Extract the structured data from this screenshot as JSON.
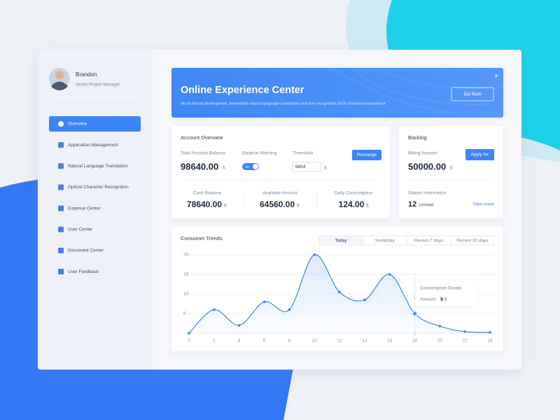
{
  "profile": {
    "name": "Brandon",
    "role": "Senior Project Manager"
  },
  "menu": [
    "Overview",
    "Application Management",
    "Natural Language Translation",
    "Optical Character Recognition",
    "Expense Center",
    "User Center",
    "Document Center",
    "User Feedback"
  ],
  "banner": {
    "title": "Online Experience Center",
    "subtitle": "No technical development, immediate natural language translation and text recognition OCR functional experience",
    "button": "Go Now",
    "close": "×"
  },
  "currency": "$",
  "account": {
    "title": "Account Overview",
    "total_label": "Total Account Balance",
    "total": "98640.00",
    "warning_label": "Balance Warning",
    "toggle": "on",
    "threshold_label": "Threshold",
    "threshold": "6854",
    "button": "Recharge",
    "cash_label": "Cash Balance",
    "cash": "78640.00",
    "available_label": "Available Amount",
    "available": "64560.00",
    "daily_label": "Daily Consumption",
    "daily": "124.00"
  },
  "backlog": {
    "title": "Backlog",
    "billing_label": "Billing Amount",
    "billing": "50000.00",
    "button": "Apply for",
    "station_label": "Station Information",
    "count": "12",
    "unread": "Unread",
    "link": "View more"
  },
  "chart_data": {
    "type": "line",
    "title": "Consumer Trends",
    "tabs": [
      "Today",
      "Yesterday",
      "Recent 7 days",
      "Recent 30 days"
    ],
    "x": [
      0,
      2,
      4,
      6,
      8,
      10,
      12,
      14,
      16,
      18,
      20,
      22,
      24
    ],
    "values": [
      0,
      6,
      2,
      8,
      6,
      20,
      10.5,
      8.5,
      15,
      5,
      1.8,
      0.4,
      0.2
    ],
    "color": "#3d84f7",
    "xlim": [
      0,
      24
    ],
    "xticks": [
      0,
      2,
      4,
      6,
      8,
      10,
      12,
      14,
      16,
      18,
      20,
      22,
      24
    ],
    "ylim": [
      0,
      20
    ],
    "yticks": [
      5,
      10,
      15,
      20
    ],
    "grid": true,
    "tooltip": {
      "title": "Consumption Details",
      "label": "Amount:",
      "value": 5
    }
  }
}
